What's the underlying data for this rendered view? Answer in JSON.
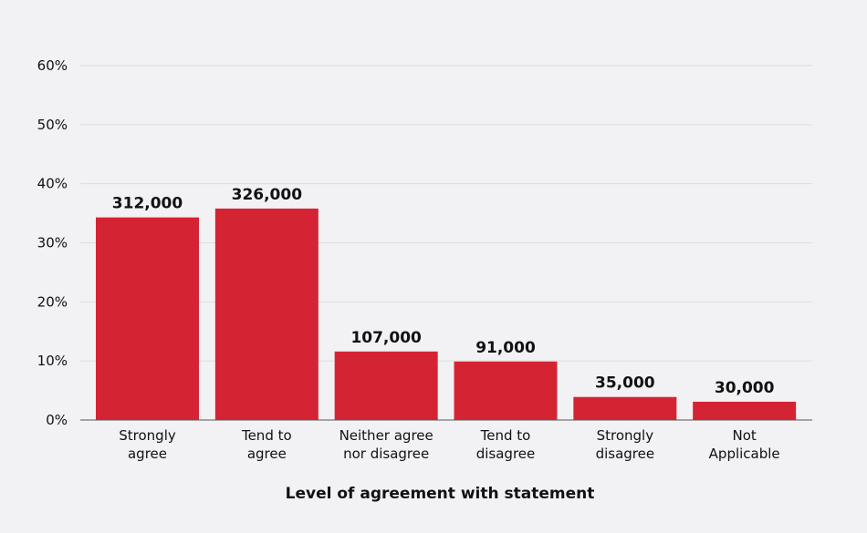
{
  "chart_data": {
    "type": "bar",
    "title": "",
    "xlabel": "Level of agreement with statement",
    "ylabel": "",
    "ylim": [
      0,
      60
    ],
    "yticks": [
      "0%",
      "10%",
      "20%",
      "30%",
      "40%",
      "50%",
      "60%"
    ],
    "grid": true,
    "categories": [
      [
        "Strongly",
        "agree"
      ],
      [
        "Tend to",
        "agree"
      ],
      [
        "Neither agree",
        "nor disagree"
      ],
      [
        "Tend to",
        "disagree"
      ],
      [
        "Strongly",
        "disagree"
      ],
      [
        "Not",
        "Applicable"
      ]
    ],
    "values": [
      34.3,
      35.8,
      11.6,
      9.9,
      3.9,
      3.1
    ],
    "data_labels": [
      "312,000",
      "326,000",
      "107,000",
      "91,000",
      "35,000",
      "30,000"
    ],
    "colors": {
      "bar": "#d42434",
      "grid": "#dcdce0",
      "background": "#f2f2f4"
    }
  }
}
